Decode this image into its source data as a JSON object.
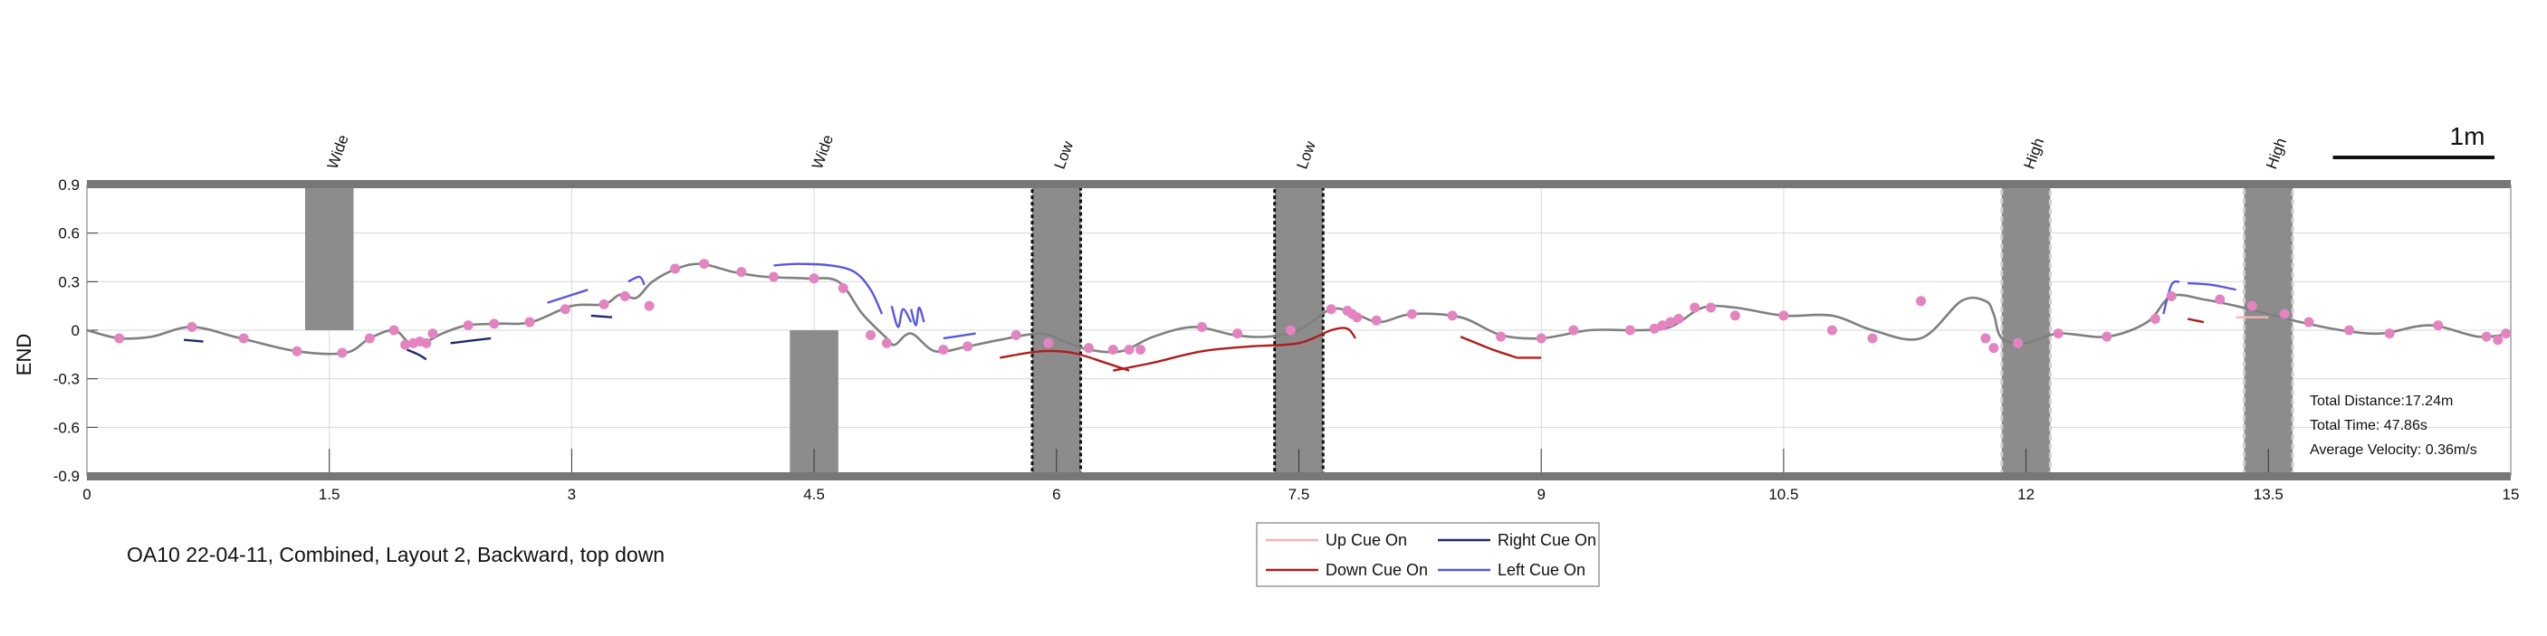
{
  "chart_data": {
    "type": "line",
    "title": "OA10 22-04-11, Combined, Layout 2, Backward, top down",
    "ylabel": "END",
    "xlabel": "",
    "xlim": [
      0,
      15
    ],
    "ylim": [
      -0.9,
      0.9
    ],
    "x_ticks": [
      "0",
      "1.5",
      "3",
      "4.5",
      "6",
      "7.5",
      "9",
      "10.5",
      "12",
      "13.5",
      "15"
    ],
    "y_ticks": [
      "0.9",
      "0.6",
      "0.3",
      "0",
      "-0.3",
      "-0.6",
      "-0.9"
    ],
    "grid": true,
    "scale_bar": {
      "label": "1m",
      "length": 1
    },
    "obstacles": [
      {
        "label": "Wide",
        "x": [
          1.35,
          1.65
        ],
        "y": [
          0,
          0.9
        ],
        "style": "wide"
      },
      {
        "label": "Wide",
        "x": [
          4.35,
          4.65
        ],
        "y": [
          -0.9,
          0
        ],
        "style": "wide"
      },
      {
        "label": "Low",
        "x": [
          5.85,
          6.15
        ],
        "y": [
          -0.9,
          0.9
        ],
        "style": "low"
      },
      {
        "label": "Low",
        "x": [
          7.35,
          7.65
        ],
        "y": [
          -0.9,
          0.9
        ],
        "style": "low"
      },
      {
        "label": "High",
        "x": [
          11.85,
          12.15
        ],
        "y": [
          -0.9,
          0.9
        ],
        "style": "high"
      },
      {
        "label": "High",
        "x": [
          13.35,
          13.65
        ],
        "y": [
          -0.9,
          0.9
        ],
        "style": "high"
      }
    ],
    "trajectory": {
      "color": "#808080",
      "x": [
        0,
        0.2,
        0.4,
        0.65,
        0.95,
        1.3,
        1.6,
        1.75,
        1.9,
        2.0,
        2.1,
        2.2,
        2.35,
        2.55,
        2.75,
        3.0,
        3.2,
        3.3,
        3.4,
        3.5,
        3.65,
        3.8,
        4.0,
        4.2,
        4.45,
        4.65,
        4.8,
        4.95,
        5.0,
        5.1,
        5.25,
        5.45,
        5.65,
        5.9,
        6.05,
        6.2,
        6.4,
        6.6,
        6.85,
        7.1,
        7.3,
        7.5,
        7.7,
        7.85,
        8.0,
        8.2,
        8.5,
        8.75,
        9.0,
        9.3,
        9.6,
        9.8,
        10.0,
        10.2,
        10.5,
        10.8,
        11.05,
        11.35,
        11.6,
        11.75,
        11.8,
        11.85,
        12.0,
        12.2,
        12.5,
        12.75,
        12.9,
        13.1,
        13.3,
        13.5,
        13.7,
        13.95,
        14.2,
        14.5,
        14.8,
        15.0
      ],
      "y": [
        0,
        -0.05,
        -0.04,
        0.02,
        -0.05,
        -0.13,
        -0.14,
        -0.05,
        0.0,
        -0.08,
        -0.07,
        -0.02,
        0.03,
        0.04,
        0.05,
        0.15,
        0.16,
        0.22,
        0.2,
        0.3,
        0.38,
        0.41,
        0.36,
        0.33,
        0.32,
        0.3,
        0.1,
        -0.05,
        -0.09,
        -0.02,
        -0.13,
        -0.1,
        -0.06,
        -0.02,
        -0.07,
        -0.12,
        -0.13,
        -0.04,
        0.02,
        -0.03,
        -0.04,
        0.0,
        0.13,
        0.1,
        0.05,
        0.1,
        0.08,
        -0.03,
        -0.05,
        0.0,
        0.0,
        0.02,
        0.14,
        0.14,
        0.09,
        0.09,
        0.0,
        -0.05,
        0.18,
        0.18,
        0.1,
        -0.05,
        -0.08,
        -0.02,
        -0.04,
        0.05,
        0.21,
        0.19,
        0.15,
        0.1,
        0.05,
        0.0,
        -0.02,
        0.03,
        -0.04,
        -0.02
      ]
    },
    "markers": {
      "color": "#e384c0",
      "x": [
        0.2,
        0.65,
        0.97,
        1.3,
        1.58,
        1.75,
        1.9,
        1.97,
        2.02,
        2.06,
        2.1,
        2.14,
        2.36,
        2.52,
        2.74,
        2.96,
        3.2,
        3.33,
        3.48,
        3.64,
        3.82,
        4.05,
        4.25,
        4.5,
        4.68,
        4.85,
        4.95,
        5.3,
        5.45,
        5.75,
        5.95,
        6.2,
        6.35,
        6.45,
        6.52,
        6.9,
        7.12,
        7.45,
        7.7,
        7.8,
        7.83,
        7.86,
        7.98,
        8.2,
        8.45,
        8.75,
        9.0,
        9.2,
        9.55,
        9.7,
        9.75,
        9.8,
        9.85,
        9.95,
        10.05,
        10.2,
        10.5,
        10.8,
        11.05,
        11.35,
        11.75,
        11.8,
        11.95,
        12.2,
        12.5,
        12.8,
        12.9,
        13.2,
        13.4,
        13.6,
        13.75,
        14.0,
        14.25,
        14.55,
        14.85,
        14.92,
        14.97
      ],
      "y": [
        -0.05,
        0.02,
        -0.05,
        -0.13,
        -0.14,
        -0.05,
        0.0,
        -0.09,
        -0.08,
        -0.07,
        -0.08,
        -0.02,
        0.03,
        0.04,
        0.05,
        0.13,
        0.16,
        0.21,
        0.15,
        0.38,
        0.41,
        0.36,
        0.33,
        0.32,
        0.26,
        -0.03,
        -0.08,
        -0.12,
        -0.1,
        -0.03,
        -0.08,
        -0.11,
        -0.12,
        -0.12,
        -0.12,
        0.02,
        -0.02,
        0.0,
        0.13,
        0.12,
        0.1,
        0.08,
        0.06,
        0.1,
        0.09,
        -0.04,
        -0.05,
        0.0,
        0.0,
        0.01,
        0.03,
        0.05,
        0.07,
        0.14,
        0.14,
        0.09,
        0.09,
        0.0,
        -0.05,
        0.18,
        -0.05,
        -0.11,
        -0.08,
        -0.02,
        -0.04,
        0.07,
        0.21,
        0.19,
        0.15,
        0.1,
        0.05,
        0.0,
        -0.02,
        0.03,
        -0.04,
        -0.06,
        -0.02
      ]
    },
    "cue_segments": [
      {
        "cue": "Right Cue On",
        "x": [
          0.6,
          0.72
        ],
        "y": [
          -0.06,
          -0.07
        ]
      },
      {
        "cue": "Right Cue On",
        "x": [
          1.98,
          2.05,
          2.1
        ],
        "y": [
          -0.12,
          -0.15,
          -0.18
        ]
      },
      {
        "cue": "Right Cue On",
        "x": [
          2.25,
          2.5
        ],
        "y": [
          -0.08,
          -0.05
        ]
      },
      {
        "cue": "Right Cue On",
        "x": [
          3.12,
          3.25
        ],
        "y": [
          0.09,
          0.08
        ]
      },
      {
        "cue": "Left Cue On",
        "x": [
          2.85,
          3.1
        ],
        "y": [
          0.17,
          0.25
        ]
      },
      {
        "cue": "Left Cue On",
        "x": [
          3.35,
          3.42,
          3.45
        ],
        "y": [
          0.3,
          0.33,
          0.28
        ]
      },
      {
        "cue": "Left Cue On",
        "x": [
          4.25,
          4.4,
          4.6,
          4.75,
          4.85,
          4.92
        ],
        "y": [
          0.4,
          0.41,
          0.4,
          0.36,
          0.25,
          0.1
        ]
      },
      {
        "cue": "Left Cue On",
        "x": [
          4.98,
          5.02,
          5.05,
          5.1
        ],
        "y": [
          0.15,
          0.02,
          0.13,
          0.05
        ]
      },
      {
        "cue": "Left Cue On",
        "x": [
          5.1,
          5.13,
          5.15,
          5.18
        ],
        "y": [
          0.13,
          0.03,
          0.14,
          0.05
        ]
      },
      {
        "cue": "Left Cue On",
        "x": [
          5.3,
          5.5
        ],
        "y": [
          -0.05,
          -0.02
        ]
      },
      {
        "cue": "Down Cue On",
        "x": [
          5.65,
          5.9,
          6.1,
          6.3,
          6.45
        ],
        "y": [
          -0.17,
          -0.13,
          -0.14,
          -0.2,
          -0.25
        ]
      },
      {
        "cue": "Down Cue On",
        "x": [
          6.35,
          6.6,
          6.9,
          7.2,
          7.5,
          7.7,
          7.8,
          7.85
        ],
        "y": [
          -0.25,
          -0.2,
          -0.13,
          -0.1,
          -0.08,
          0.0,
          0.01,
          -0.05
        ]
      },
      {
        "cue": "Down Cue On",
        "x": [
          8.5,
          8.7,
          8.85
        ],
        "y": [
          -0.04,
          -0.12,
          -0.17
        ]
      },
      {
        "cue": "Down Cue On",
        "x": [
          8.85,
          9.0
        ],
        "y": [
          -0.17,
          -0.17
        ]
      },
      {
        "cue": "Down Cue On",
        "x": [
          13.0,
          13.1
        ],
        "y": [
          0.07,
          0.05
        ]
      },
      {
        "cue": "Left Cue On",
        "x": [
          12.85,
          12.9,
          12.95
        ],
        "y": [
          0.1,
          0.28,
          0.3
        ]
      },
      {
        "cue": "Left Cue On",
        "x": [
          13.0,
          13.15,
          13.3
        ],
        "y": [
          0.29,
          0.28,
          0.25
        ]
      },
      {
        "cue": "Up Cue On",
        "x": [
          13.3,
          13.5
        ],
        "y": [
          0.08,
          0.08
        ]
      }
    ],
    "legend": [
      {
        "label": "Up Cue On",
        "color": "#f4b6b6"
      },
      {
        "label": "Right Cue On",
        "color": "#1d2a6e"
      },
      {
        "label": "Down Cue On",
        "color": "#b01c1c"
      },
      {
        "label": "Left Cue On",
        "color": "#5858e0"
      }
    ],
    "legend_position": "bottom-center",
    "stats": [
      "Total Distance:17.24m",
      "Total Time: 47.86s",
      "Average Velocity: 0.36m/s"
    ]
  }
}
